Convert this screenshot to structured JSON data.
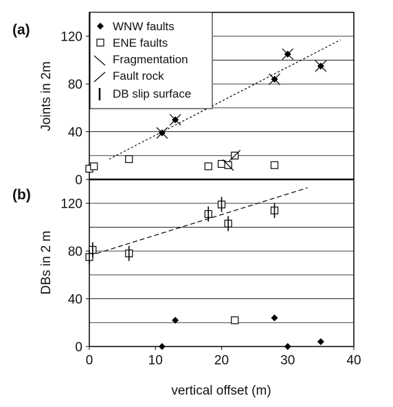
{
  "chart_data": [
    {
      "panel": "a",
      "panel_label": "(a)",
      "type": "scatter",
      "ylabel": "Joints in 2m",
      "xlabel": "",
      "xlim": [
        0,
        40
      ],
      "ylim": [
        0,
        140
      ],
      "yticks": [
        0,
        40,
        80,
        120
      ],
      "grid": "horizontal",
      "legend": {
        "placement": "top-left",
        "entries": [
          {
            "symbol": "filled-diamond",
            "label": "WNW faults"
          },
          {
            "symbol": "open-square",
            "label": "ENE faults"
          },
          {
            "symbol": "backslash",
            "label": "Fragmentation"
          },
          {
            "symbol": "slash",
            "label": "Fault rock"
          },
          {
            "symbol": "vertical-bar",
            "label": "DB slip surface"
          }
        ]
      },
      "series": [
        {
          "name": "WNW faults",
          "marker": "filled-diamond",
          "points": [
            {
              "x": 11,
              "y": 39
            },
            {
              "x": 13,
              "y": 50
            },
            {
              "x": 28,
              "y": 84
            },
            {
              "x": 30,
              "y": 105
            },
            {
              "x": 35,
              "y": 95
            }
          ]
        },
        {
          "name": "ENE faults",
          "marker": "open-square",
          "points": [
            {
              "x": 0,
              "y": 9
            },
            {
              "x": 0.7,
              "y": 11
            },
            {
              "x": 6,
              "y": 17
            },
            {
              "x": 18,
              "y": 11
            },
            {
              "x": 20,
              "y": 13
            },
            {
              "x": 21,
              "y": 12
            },
            {
              "x": 22,
              "y": 20
            },
            {
              "x": 28,
              "y": 12
            }
          ]
        },
        {
          "name": "Fragmentation",
          "marker": "backslash",
          "points": [
            {
              "x": 11,
              "y": 39
            },
            {
              "x": 13,
              "y": 50
            },
            {
              "x": 28,
              "y": 84
            },
            {
              "x": 30,
              "y": 105
            },
            {
              "x": 35,
              "y": 95
            },
            {
              "x": 21,
              "y": 12
            }
          ]
        },
        {
          "name": "Fault rock",
          "marker": "slash",
          "points": [
            {
              "x": 11,
              "y": 39
            },
            {
              "x": 13,
              "y": 50
            },
            {
              "x": 28,
              "y": 84
            },
            {
              "x": 30,
              "y": 105
            },
            {
              "x": 35,
              "y": 95
            },
            {
              "x": 22,
              "y": 20
            }
          ]
        }
      ],
      "trendline": {
        "style": "dotted",
        "x": [
          3,
          38
        ],
        "y": [
          17,
          117
        ]
      }
    },
    {
      "panel": "b",
      "panel_label": "(b)",
      "type": "scatter",
      "ylabel": "DBs in 2 m",
      "xlabel": "vertical offset (m)",
      "xlim": [
        0,
        40
      ],
      "ylim": [
        0,
        140
      ],
      "yticks": [
        0,
        40,
        80,
        120
      ],
      "xticks": [
        0,
        10,
        20,
        30,
        40
      ],
      "grid": "horizontal",
      "series": [
        {
          "name": "ENE faults",
          "marker": "open-square",
          "points": [
            {
              "x": 0,
              "y": 75
            },
            {
              "x": 0.5,
              "y": 81
            },
            {
              "x": 6,
              "y": 78
            },
            {
              "x": 18,
              "y": 111
            },
            {
              "x": 20,
              "y": 119
            },
            {
              "x": 21,
              "y": 103
            },
            {
              "x": 22,
              "y": 22
            },
            {
              "x": 28,
              "y": 114
            }
          ]
        },
        {
          "name": "WNW faults",
          "marker": "filled-diamond",
          "points": [
            {
              "x": 11,
              "y": 0
            },
            {
              "x": 13,
              "y": 22
            },
            {
              "x": 28,
              "y": 24
            },
            {
              "x": 30,
              "y": 0
            },
            {
              "x": 35,
              "y": 4
            }
          ]
        },
        {
          "name": "DB slip surface",
          "marker": "vertical-bar",
          "points": [
            {
              "x": 0,
              "y": 75
            },
            {
              "x": 0.5,
              "y": 81
            },
            {
              "x": 6,
              "y": 78
            },
            {
              "x": 18,
              "y": 111
            },
            {
              "x": 20,
              "y": 119
            },
            {
              "x": 21,
              "y": 103
            },
            {
              "x": 28,
              "y": 114
            }
          ]
        }
      ],
      "trendline": {
        "style": "dashed",
        "x": [
          0,
          33
        ],
        "y": [
          76,
          133
        ]
      }
    }
  ]
}
